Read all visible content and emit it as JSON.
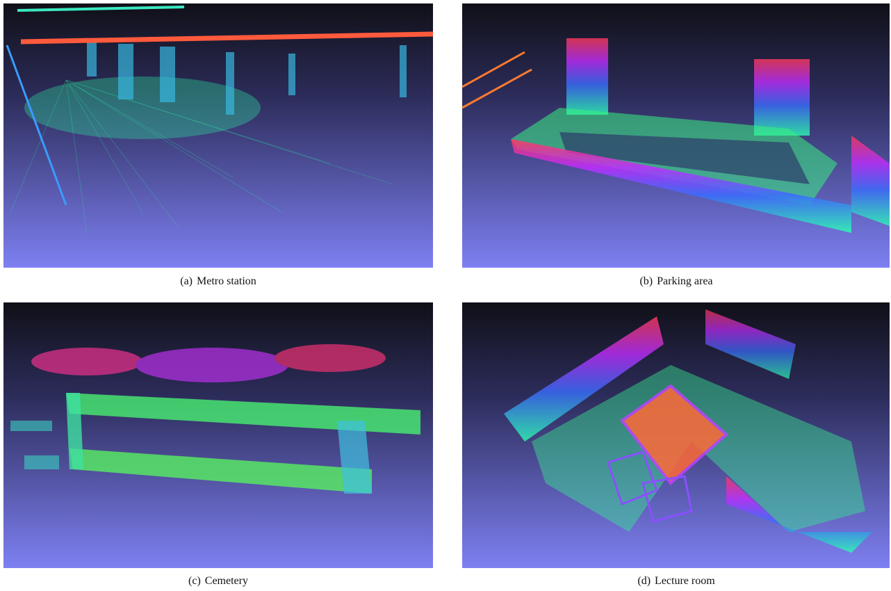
{
  "figure": {
    "panels": [
      {
        "label": "(a)",
        "caption": "Metro station"
      },
      {
        "label": "(b)",
        "caption": "Parking area"
      },
      {
        "label": "(c)",
        "caption": "Cemetery"
      },
      {
        "label": "(d)",
        "caption": "Lecture room"
      }
    ]
  }
}
